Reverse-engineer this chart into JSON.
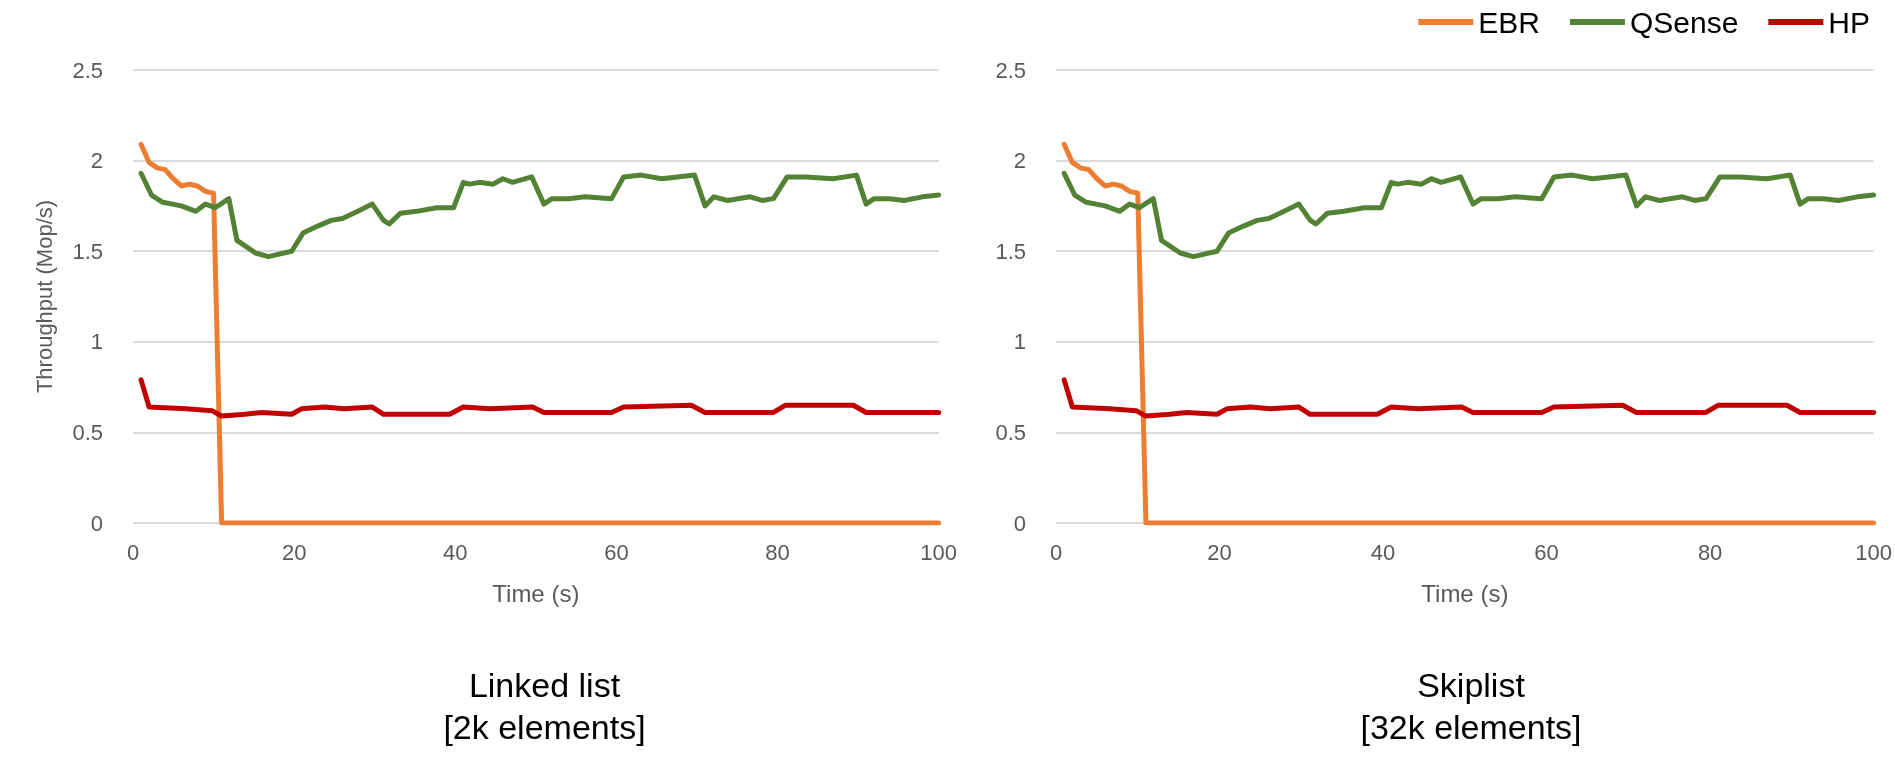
{
  "chart_data": [
    {
      "type": "line",
      "title": "Linked list",
      "subtitle": "[2k elements]",
      "xlabel": "Time (s)",
      "ylabel": "Throughput (Mop/s)",
      "xlim": [
        0,
        100
      ],
      "xticks": [
        0,
        20,
        40,
        60,
        80,
        100
      ],
      "ylim": [
        0,
        2.5
      ],
      "yticks": [
        0,
        0.5,
        1,
        1.5,
        2,
        2.5
      ],
      "grid": "y",
      "legend": false,
      "marker": "none",
      "line_style": "solid",
      "series": [
        {
          "color": "#ed7d31",
          "x": [
            1,
            2,
            3,
            4,
            5,
            6,
            7,
            8,
            9,
            10,
            11,
            100
          ],
          "values": [
            2.09,
            1.99,
            1.96,
            1.95,
            1.9,
            1.86,
            1.87,
            1.86,
            1.83,
            1.82,
            0,
            0
          ]
        },
        {
          "color": "#548235",
          "x": [
            1,
            2.3,
            3.7,
            6,
            7.8,
            9,
            10.2,
            11.9,
            12.9,
            15.2,
            16.8,
            19.7,
            21.1,
            23,
            24.6,
            26,
            27.9,
            29.7,
            31.1,
            31.8,
            33.2,
            35.2,
            37.7,
            39.8,
            41,
            41.8,
            43,
            44.7,
            45.9,
            47.1,
            49.5,
            51,
            52,
            54.1,
            56.1,
            59.4,
            60.9,
            63.1,
            65.6,
            67.6,
            69.7,
            71,
            72.1,
            73.8,
            76.6,
            78.1,
            79.5,
            81.2,
            83.6,
            86.9,
            89.8,
            91,
            92,
            93.9,
            95.7,
            98,
            100
          ],
          "values": [
            1.93,
            1.81,
            1.77,
            1.75,
            1.72,
            1.76,
            1.74,
            1.79,
            1.56,
            1.49,
            1.47,
            1.5,
            1.6,
            1.64,
            1.67,
            1.68,
            1.72,
            1.76,
            1.67,
            1.65,
            1.71,
            1.72,
            1.74,
            1.74,
            1.88,
            1.87,
            1.88,
            1.87,
            1.9,
            1.88,
            1.91,
            1.76,
            1.79,
            1.79,
            1.8,
            1.79,
            1.91,
            1.92,
            1.9,
            1.91,
            1.92,
            1.75,
            1.8,
            1.78,
            1.8,
            1.78,
            1.79,
            1.91,
            1.91,
            1.9,
            1.92,
            1.76,
            1.79,
            1.79,
            1.78,
            1.8,
            1.81
          ]
        },
        {
          "color": "#c00000",
          "x": [
            1,
            2,
            6.6,
            9.8,
            11,
            13.9,
            16,
            19.7,
            20.9,
            23.8,
            26.2,
            29.7,
            31.1,
            34.4,
            39.3,
            41,
            44.3,
            49.6,
            51,
            55.7,
            59.4,
            60.9,
            69.3,
            71,
            76.4,
            79.5,
            81,
            89.4,
            91,
            94.7,
            100
          ],
          "values": [
            0.79,
            0.64,
            0.63,
            0.62,
            0.59,
            0.6,
            0.61,
            0.6,
            0.63,
            0.64,
            0.63,
            0.64,
            0.6,
            0.6,
            0.6,
            0.64,
            0.63,
            0.64,
            0.61,
            0.61,
            0.61,
            0.64,
            0.65,
            0.61,
            0.61,
            0.61,
            0.65,
            0.65,
            0.61,
            0.61,
            0.61
          ]
        }
      ]
    },
    {
      "type": "line",
      "title": "Skiplist",
      "subtitle": "[32k elements]",
      "xlabel": "Time (s)",
      "xlim": [
        0,
        100
      ],
      "xticks": [
        0,
        20,
        40,
        60,
        80,
        100
      ],
      "ylim": [
        0,
        2.5
      ],
      "yticks": [
        0,
        0.5,
        1,
        1.5,
        2,
        2.5
      ],
      "grid": "y",
      "legend": "top right",
      "marker": "none",
      "line_style": "solid",
      "series": [
        {
          "name": "EBR",
          "color": "#ed7d31",
          "x": [
            1,
            2,
            3,
            4,
            5,
            6,
            7,
            8,
            9,
            10,
            11,
            100
          ],
          "values": [
            2.09,
            1.99,
            1.96,
            1.95,
            1.9,
            1.86,
            1.87,
            1.86,
            1.83,
            1.82,
            0,
            0
          ]
        },
        {
          "name": "QSense",
          "color": "#548235",
          "x": [
            1,
            2.3,
            3.7,
            6,
            7.8,
            9,
            10.2,
            11.9,
            12.9,
            15.2,
            16.8,
            19.7,
            21.1,
            23,
            24.6,
            26,
            27.9,
            29.7,
            31.1,
            31.8,
            33.2,
            35.2,
            37.7,
            39.8,
            41,
            41.8,
            43,
            44.7,
            45.9,
            47.1,
            49.5,
            51,
            52,
            54.1,
            56.1,
            59.4,
            60.9,
            63.1,
            65.6,
            67.6,
            69.7,
            71,
            72.1,
            73.8,
            76.6,
            78.1,
            79.5,
            81.2,
            83.6,
            86.9,
            89.8,
            91,
            92,
            93.9,
            95.7,
            98,
            100
          ],
          "values": [
            1.93,
            1.81,
            1.77,
            1.75,
            1.72,
            1.76,
            1.74,
            1.79,
            1.56,
            1.49,
            1.47,
            1.5,
            1.6,
            1.64,
            1.67,
            1.68,
            1.72,
            1.76,
            1.67,
            1.65,
            1.71,
            1.72,
            1.74,
            1.74,
            1.88,
            1.87,
            1.88,
            1.87,
            1.9,
            1.88,
            1.91,
            1.76,
            1.79,
            1.79,
            1.8,
            1.79,
            1.91,
            1.92,
            1.9,
            1.91,
            1.92,
            1.75,
            1.8,
            1.78,
            1.8,
            1.78,
            1.79,
            1.91,
            1.91,
            1.9,
            1.92,
            1.76,
            1.79,
            1.79,
            1.78,
            1.8,
            1.81
          ]
        },
        {
          "name": "HP",
          "color": "#c00000",
          "x": [
            1,
            2,
            6.6,
            9.8,
            11,
            13.9,
            16,
            19.7,
            20.9,
            23.8,
            26.2,
            29.7,
            31.1,
            34.4,
            39.3,
            41,
            44.3,
            49.6,
            51,
            55.7,
            59.4,
            60.9,
            69.3,
            71,
            76.4,
            79.5,
            81,
            89.4,
            91,
            94.7,
            100
          ],
          "values": [
            0.79,
            0.64,
            0.63,
            0.62,
            0.59,
            0.6,
            0.61,
            0.6,
            0.63,
            0.64,
            0.63,
            0.64,
            0.6,
            0.6,
            0.6,
            0.64,
            0.63,
            0.64,
            0.61,
            0.61,
            0.61,
            0.64,
            0.65,
            0.61,
            0.61,
            0.61,
            0.65,
            0.65,
            0.61,
            0.61,
            0.61
          ]
        }
      ]
    }
  ]
}
